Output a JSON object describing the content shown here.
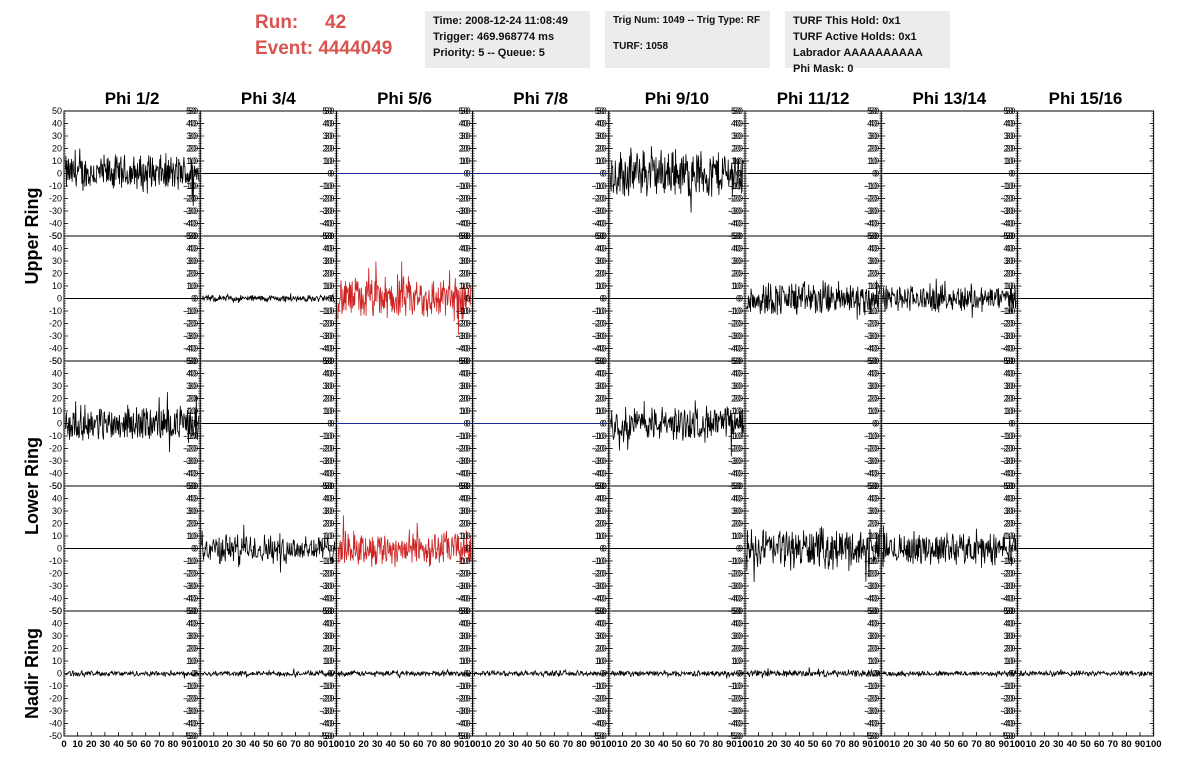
{
  "header": {
    "run_label": "Run:",
    "run_value": "42",
    "event_label": "Event:",
    "event_value": "4444049"
  },
  "info_boxes": {
    "time": "Time: 2008-12-24 11:08:49",
    "trigger": "Trigger: 469.968774 ms",
    "priority": "Priority: 5 -- Queue: 5",
    "trig_num": "Trig Num: 1049 -- Trig Type: RF",
    "turf": "TURF: 1058",
    "turf_hold": "TURF This Hold: 0x1",
    "turf_active": "TURF Active Holds: 0x1",
    "labrador": "Labrador AAAAAAAAAA",
    "phi_mask": "Phi Mask: 0"
  },
  "colors": {
    "title": "#d9534f",
    "trace": "#000000",
    "triggered": "#cc2222",
    "flat_blue": "#1a2a9a",
    "box": "#ececec"
  },
  "chart_data": {
    "type": "line",
    "columns": [
      "Phi 1/2",
      "Phi 3/4",
      "Phi 5/6",
      "Phi 7/8",
      "Phi 9/10",
      "Phi 11/12",
      "Phi 13/14",
      "Phi 15/16"
    ],
    "ring_labels": [
      {
        "name": "Upper Ring",
        "rows": [
          0,
          1
        ]
      },
      {
        "name": "Lower Ring",
        "rows": [
          2,
          3
        ]
      },
      {
        "name": "Nadir Ring",
        "rows": [
          4
        ]
      }
    ],
    "xlim": [
      0,
      100
    ],
    "x_ticks": [
      "0",
      "10",
      "20",
      "30",
      "40",
      "50",
      "60",
      "70",
      "80",
      "90",
      "100"
    ],
    "ylim": [
      -50,
      50
    ],
    "y_ticks": [
      "50",
      "40",
      "30",
      "20",
      "10",
      "0",
      "-10",
      "-20",
      "-30",
      "-40",
      "-50"
    ],
    "n_samples": 260,
    "rows": [
      [
        {
          "amp": 14,
          "color": "black"
        },
        {
          "amp": 0,
          "color": "black"
        },
        {
          "amp": 0,
          "color": "blue"
        },
        {
          "amp": 0,
          "color": "blue"
        },
        {
          "amp": 18,
          "color": "black"
        },
        {
          "amp": 0,
          "color": "black"
        },
        {
          "amp": 0,
          "color": "black"
        },
        {
          "amp": 0,
          "color": "black"
        }
      ],
      [
        {
          "amp": 0,
          "color": "black"
        },
        {
          "amp": 2.5,
          "color": "black"
        },
        {
          "amp": 16,
          "color": "red"
        },
        {
          "amp": 0,
          "color": "black"
        },
        {
          "amp": 0,
          "color": "black"
        },
        {
          "amp": 13,
          "color": "black"
        },
        {
          "amp": 10,
          "color": "black"
        },
        {
          "amp": 0,
          "color": "black"
        }
      ],
      [
        {
          "amp": 13,
          "color": "black"
        },
        {
          "amp": 0,
          "color": "black"
        },
        {
          "amp": 0,
          "color": "blue"
        },
        {
          "amp": 0,
          "color": "blue"
        },
        {
          "amp": 13,
          "color": "black"
        },
        {
          "amp": 0,
          "color": "black"
        },
        {
          "amp": 0,
          "color": "black"
        },
        {
          "amp": 0,
          "color": "black"
        }
      ],
      [
        {
          "amp": 0,
          "color": "black"
        },
        {
          "amp": 11,
          "color": "black"
        },
        {
          "amp": 13,
          "color": "red"
        },
        {
          "amp": 0,
          "color": "black"
        },
        {
          "amp": 0,
          "color": "black"
        },
        {
          "amp": 15,
          "color": "black"
        },
        {
          "amp": 12,
          "color": "black"
        },
        {
          "amp": 0,
          "color": "black"
        }
      ],
      [
        {
          "amp": 2,
          "color": "black"
        },
        {
          "amp": 2,
          "color": "black"
        },
        {
          "amp": 2,
          "color": "black"
        },
        {
          "amp": 2,
          "color": "black"
        },
        {
          "amp": 2,
          "color": "black"
        },
        {
          "amp": 2.5,
          "color": "black"
        },
        {
          "amp": 2,
          "color": "black"
        },
        {
          "amp": 2,
          "color": "black"
        }
      ]
    ]
  }
}
